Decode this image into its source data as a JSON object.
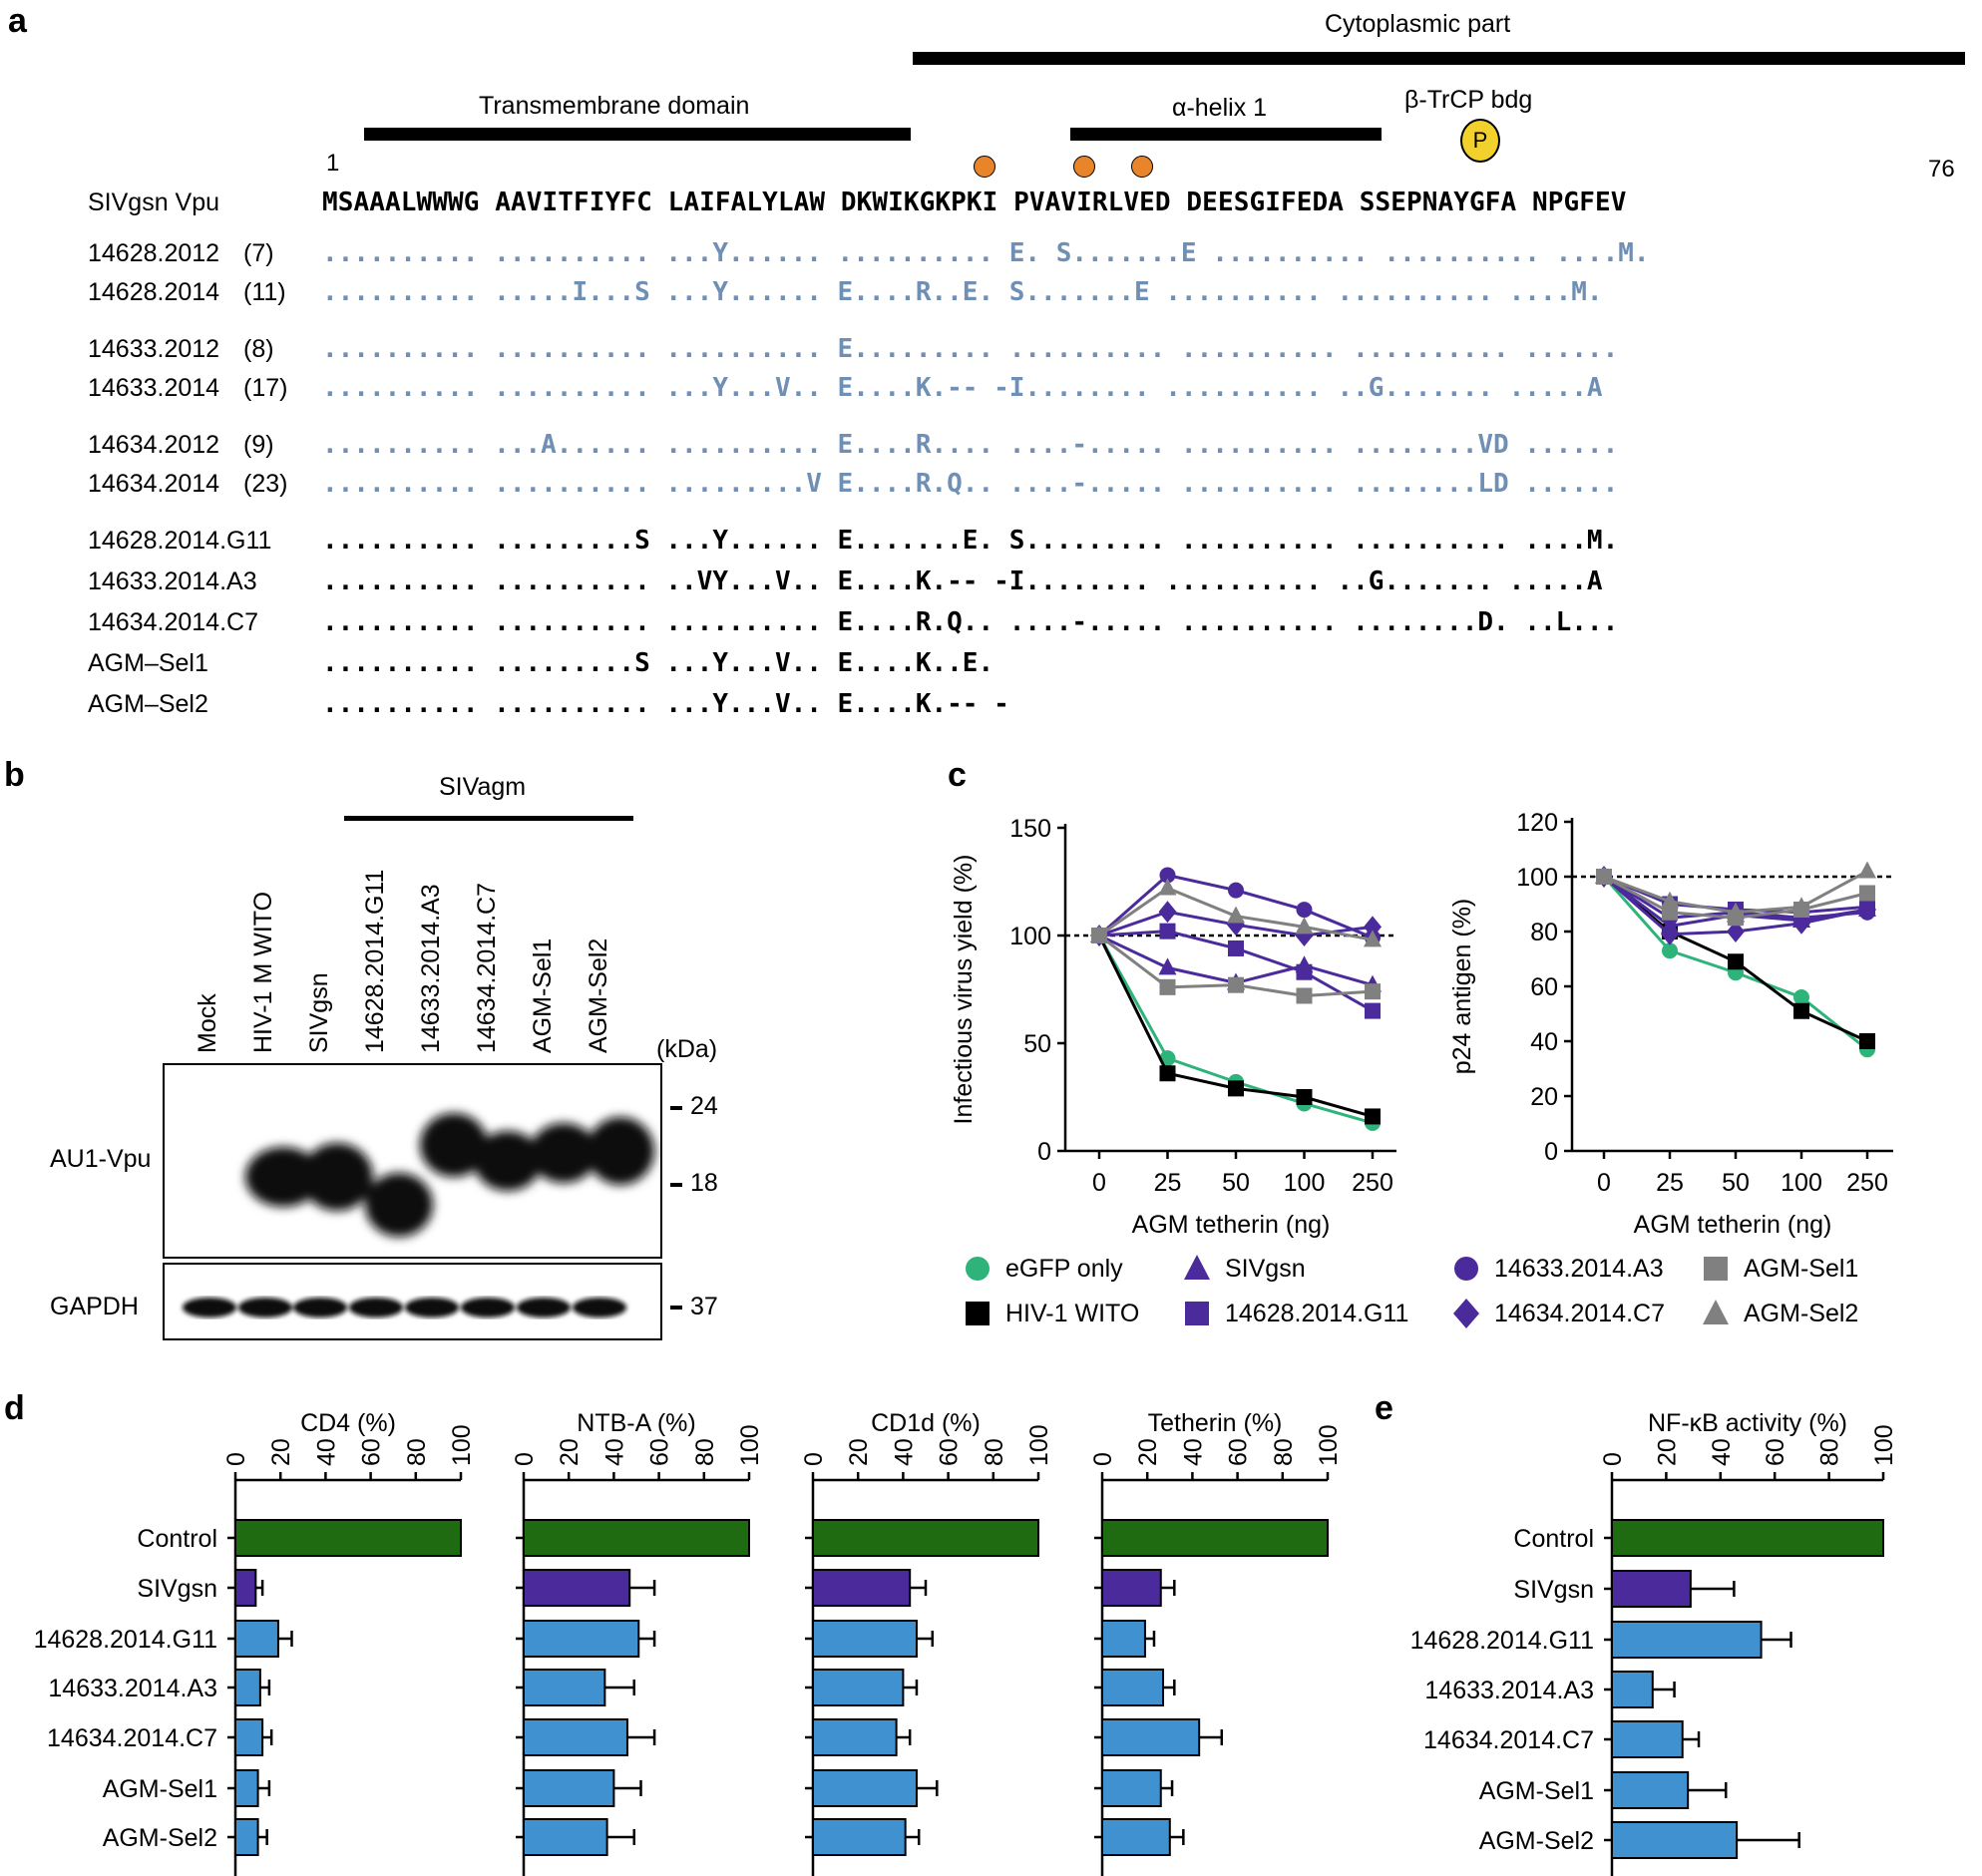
{
  "panels": {
    "a": "a",
    "b": "b",
    "c": "c",
    "d": "d",
    "e": "e"
  },
  "panel_a": {
    "domains": {
      "cytoplasmic": "Cytoplasmic part",
      "transmembrane": "Transmembrane domain",
      "helix": "α-helix 1",
      "btrcp": "β-TrCP bdg",
      "phospho": "P"
    },
    "pos_start": "1",
    "pos_end": "76",
    "ref_name": "SIVgsn Vpu",
    "ref_seq": "MSAAALWWWG AAVITFIYFC LAIFALYLAW DKWIKGKPKI PVAVIRLVED DEESGIFEDA SSEPNAYGFA NPGFEV",
    "rows": [
      {
        "name": "14628.2012",
        "count": "(7)",
        "seq": ".......... .......... ...Y...... .......... E. S.......E .......... .......... ....M."
      },
      {
        "name": "14628.2014",
        "count": "(11)",
        "seq": ".......... .....I...S ...Y...... E....R..E. S.......E .......... .......... ....M."
      },
      {
        "name": "14633.2012",
        "count": "(8)",
        "seq": ".......... .......... .......... E......... .......... .......... .......... ......"
      },
      {
        "name": "14633.2014",
        "count": "(17)",
        "seq": ".......... .......... ...Y...V.. E....K.-- -I........ .......... ..G....... .....A"
      },
      {
        "name": "14634.2012",
        "count": "(9)",
        "seq": ".......... ...A...... .......... E....R.... ....-..... .......... ........VD ......"
      },
      {
        "name": "14634.2014",
        "count": "(23)",
        "seq": ".......... .......... .........V E....R.Q.. ....-..... .......... ........LD ......"
      },
      {
        "name": "14628.2014.G11",
        "count": "",
        "seq": ".......... .........S ...Y...... E.......E. S......... .......... .......... ....M."
      },
      {
        "name": "14633.2014.A3",
        "count": "",
        "seq": ".......... .......... ..VY...V.. E....K.-- -I........ .......... ..G....... .....A"
      },
      {
        "name": "14634.2014.C7",
        "count": "",
        "seq": ".......... .......... .......... E....R.Q.. ....-..... .......... ........D. ..L..."
      },
      {
        "name": "AGM–Sel1",
        "count": "",
        "seq": ".......... .........S ...Y...V.. E....K..E."
      },
      {
        "name": "AGM–Sel2",
        "count": "",
        "seq": ".......... .......... ...Y...V.. E....K.-- -"
      }
    ]
  },
  "panel_b": {
    "header": "SIVagm",
    "lanes": [
      "Mock",
      "HIV-1 M WITO",
      "SIVgsn",
      "14628.2014.G11",
      "14633.2014.A3",
      "14634.2014.C7",
      "AGM-Sel1",
      "AGM-Sel2"
    ],
    "kda_label": "(kDa)",
    "markers": [
      "24",
      "18",
      "37"
    ],
    "row_labels": [
      "AU1-Vpu",
      "GAPDH"
    ]
  },
  "panel_c": {
    "legend": [
      {
        "name": "eGFP only",
        "color": "#2eb37a",
        "marker": "circle"
      },
      {
        "name": "HIV-1 WITO",
        "color": "#000000",
        "marker": "square"
      },
      {
        "name": "SIVgsn",
        "color": "#4b2a9c",
        "marker": "triangle"
      },
      {
        "name": "14628.2014.G11",
        "color": "#4b2a9c",
        "marker": "square"
      },
      {
        "name": "14633.2014.A3",
        "color": "#4b2a9c",
        "marker": "circle"
      },
      {
        "name": "14634.2014.C7",
        "color": "#4b2a9c",
        "marker": "diamond"
      },
      {
        "name": "AGM-Sel1",
        "color": "#808080",
        "marker": "square"
      },
      {
        "name": "AGM-Sel2",
        "color": "#808080",
        "marker": "triangle"
      }
    ]
  },
  "chart_data": [
    {
      "type": "line",
      "ylabel": "Infectious virus yield (%)",
      "xlabel": "AGM tetherin (ng)",
      "x": [
        "0",
        "25",
        "50",
        "100",
        "250"
      ],
      "ylim": [
        0,
        150
      ],
      "yticks": [
        "0",
        "50",
        "100",
        "150"
      ],
      "reference_line": 100,
      "series": [
        {
          "name": "eGFP only",
          "values": [
            100,
            43,
            32,
            22,
            13
          ]
        },
        {
          "name": "HIV-1 WITO",
          "values": [
            100,
            36,
            29,
            25,
            16
          ]
        },
        {
          "name": "SIVgsn",
          "values": [
            100,
            85,
            78,
            86,
            77
          ]
        },
        {
          "name": "14628.2014.G11",
          "values": [
            100,
            102,
            94,
            83,
            65
          ]
        },
        {
          "name": "14633.2014.A3",
          "values": [
            100,
            128,
            121,
            112,
            99
          ]
        },
        {
          "name": "14634.2014.C7",
          "values": [
            100,
            111,
            105,
            100,
            104
          ]
        },
        {
          "name": "AGM-Sel1",
          "values": [
            100,
            76,
            77,
            72,
            74
          ]
        },
        {
          "name": "AGM-Sel2",
          "values": [
            100,
            122,
            109,
            104,
            98
          ]
        }
      ]
    },
    {
      "type": "line",
      "ylabel": "p24 antigen (%)",
      "xlabel": "AGM tetherin (ng)",
      "x": [
        "0",
        "25",
        "50",
        "100",
        "250"
      ],
      "ylim": [
        0,
        120
      ],
      "yticks": [
        "0",
        "20",
        "40",
        "60",
        "80",
        "100",
        "120"
      ],
      "reference_line": 100,
      "series": [
        {
          "name": "eGFP only",
          "values": [
            100,
            73,
            65,
            56,
            37
          ]
        },
        {
          "name": "HIV-1 WITO",
          "values": [
            100,
            80,
            69,
            51,
            40
          ]
        },
        {
          "name": "SIVgsn",
          "values": [
            100,
            82,
            86,
            84,
            88
          ]
        },
        {
          "name": "14628.2014.G11",
          "values": [
            100,
            90,
            88,
            87,
            89
          ]
        },
        {
          "name": "14633.2014.A3",
          "values": [
            100,
            85,
            87,
            85,
            87
          ]
        },
        {
          "name": "14634.2014.C7",
          "values": [
            100,
            79,
            80,
            83,
            88
          ]
        },
        {
          "name": "AGM-Sel1",
          "values": [
            100,
            87,
            85,
            88,
            94
          ]
        },
        {
          "name": "AGM-Sel2",
          "values": [
            100,
            91,
            87,
            89,
            102
          ]
        }
      ]
    },
    {
      "type": "bar",
      "title": "CD4 (%)",
      "categories": [
        "Control",
        "SIVgsn",
        "14628.2014.G11",
        "14633.2014.A3",
        "14634.2014.C7",
        "AGM-Sel1",
        "AGM-Sel2"
      ],
      "values": [
        100,
        9,
        19,
        11,
        12,
        10,
        10
      ],
      "errors": [
        0,
        3,
        6,
        4,
        4,
        5,
        4
      ],
      "xlim": [
        0,
        100
      ],
      "ticks": [
        "0",
        "20",
        "40",
        "60",
        "80",
        "100"
      ]
    },
    {
      "type": "bar",
      "title": "NTB-A (%)",
      "categories": [
        "Control",
        "SIVgsn",
        "14628.2014.G11",
        "14633.2014.A3",
        "14634.2014.C7",
        "AGM-Sel1",
        "AGM-Sel2"
      ],
      "values": [
        100,
        47,
        51,
        36,
        46,
        40,
        37
      ],
      "errors": [
        0,
        11,
        7,
        13,
        12,
        12,
        12
      ],
      "xlim": [
        0,
        100
      ],
      "ticks": [
        "0",
        "20",
        "40",
        "60",
        "80",
        "100"
      ]
    },
    {
      "type": "bar",
      "title": "CD1d (%)",
      "categories": [
        "Control",
        "SIVgsn",
        "14628.2014.G11",
        "14633.2014.A3",
        "14634.2014.C7",
        "AGM-Sel1",
        "AGM-Sel2"
      ],
      "values": [
        100,
        43,
        46,
        40,
        37,
        46,
        41
      ],
      "errors": [
        0,
        7,
        7,
        6,
        6,
        9,
        6
      ],
      "xlim": [
        0,
        100
      ],
      "ticks": [
        "0",
        "20",
        "40",
        "60",
        "80",
        "100"
      ]
    },
    {
      "type": "bar",
      "title": "Tetherin (%)",
      "categories": [
        "Control",
        "SIVgsn",
        "14628.2014.G11",
        "14633.2014.A3",
        "14634.2014.C7",
        "AGM-Sel1",
        "AGM-Sel2"
      ],
      "values": [
        100,
        26,
        19,
        27,
        43,
        26,
        30
      ],
      "errors": [
        0,
        6,
        4,
        5,
        10,
        5,
        6
      ],
      "xlim": [
        0,
        100
      ],
      "ticks": [
        "0",
        "20",
        "40",
        "60",
        "80",
        "100"
      ]
    },
    {
      "type": "bar",
      "title": "NF-κB activity (%)",
      "categories": [
        "Control",
        "SIVgsn",
        "14628.2014.G11",
        "14633.2014.A3",
        "14634.2014.C7",
        "AGM-Sel1",
        "AGM-Sel2"
      ],
      "values": [
        100,
        29,
        55,
        15,
        26,
        28,
        46
      ],
      "errors": [
        0,
        16,
        11,
        8,
        6,
        14,
        23
      ],
      "xlim": [
        0,
        100
      ],
      "ticks": [
        "0",
        "20",
        "40",
        "60",
        "80",
        "100"
      ]
    }
  ],
  "colors": {
    "control": "#1e6b11",
    "sivgsn": "#4b2a9c",
    "agm": "#3f92cf",
    "diff_gray": "#7f7f7f",
    "diff_blue": "#6f8fb4",
    "phospho": "#f2d12c",
    "orange": "#e8852a"
  }
}
